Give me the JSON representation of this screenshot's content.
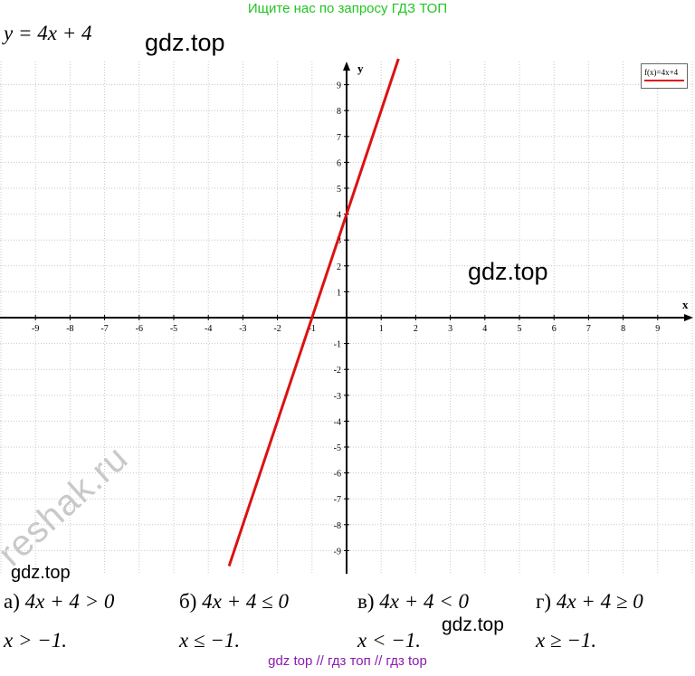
{
  "banner": "Ищите нас по запросу ГДЗ ТОП",
  "equation": "y = 4x + 4",
  "watermarks": {
    "w1": "gdz.top",
    "w2": "gdz.top",
    "w3": "gdz.top",
    "w4": "gdz.top",
    "reshak": "reshak.ru"
  },
  "footer": "gdz top  //  гдз топ  //  гдз top",
  "answers": [
    {
      "label": "а)",
      "inequality": "4x + 4 > 0",
      "solution": "x > −1."
    },
    {
      "label": "б)",
      "inequality": "4x + 4 ≤ 0",
      "solution": "x ≤ −1."
    },
    {
      "label": "в)",
      "inequality": "4x + 4 < 0",
      "solution": "x < −1."
    },
    {
      "label": "г)",
      "inequality": "4x + 4 ≥ 0",
      "solution": "x ≥ −1."
    }
  ],
  "chart_data": {
    "type": "line",
    "title": "",
    "xlabel": "x",
    "ylabel": "y",
    "xlim": [
      -10,
      10
    ],
    "ylim": [
      -10,
      10
    ],
    "x_ticks": [
      -9,
      -8,
      -7,
      -6,
      -5,
      -4,
      -3,
      -2,
      -1,
      1,
      2,
      3,
      4,
      5,
      6,
      7,
      8,
      9
    ],
    "y_ticks": [
      -9,
      -8,
      -7,
      -6,
      -5,
      -4,
      -3,
      -2,
      -1,
      1,
      2,
      3,
      4,
      5,
      6,
      7,
      8,
      9
    ],
    "grid": true,
    "legend": "top-right",
    "series": [
      {
        "name": "f(x)=4x+4",
        "color": "#dd1111",
        "x": [
          -3.4,
          1.5
        ],
        "y": [
          -9.6,
          10
        ]
      }
    ]
  }
}
